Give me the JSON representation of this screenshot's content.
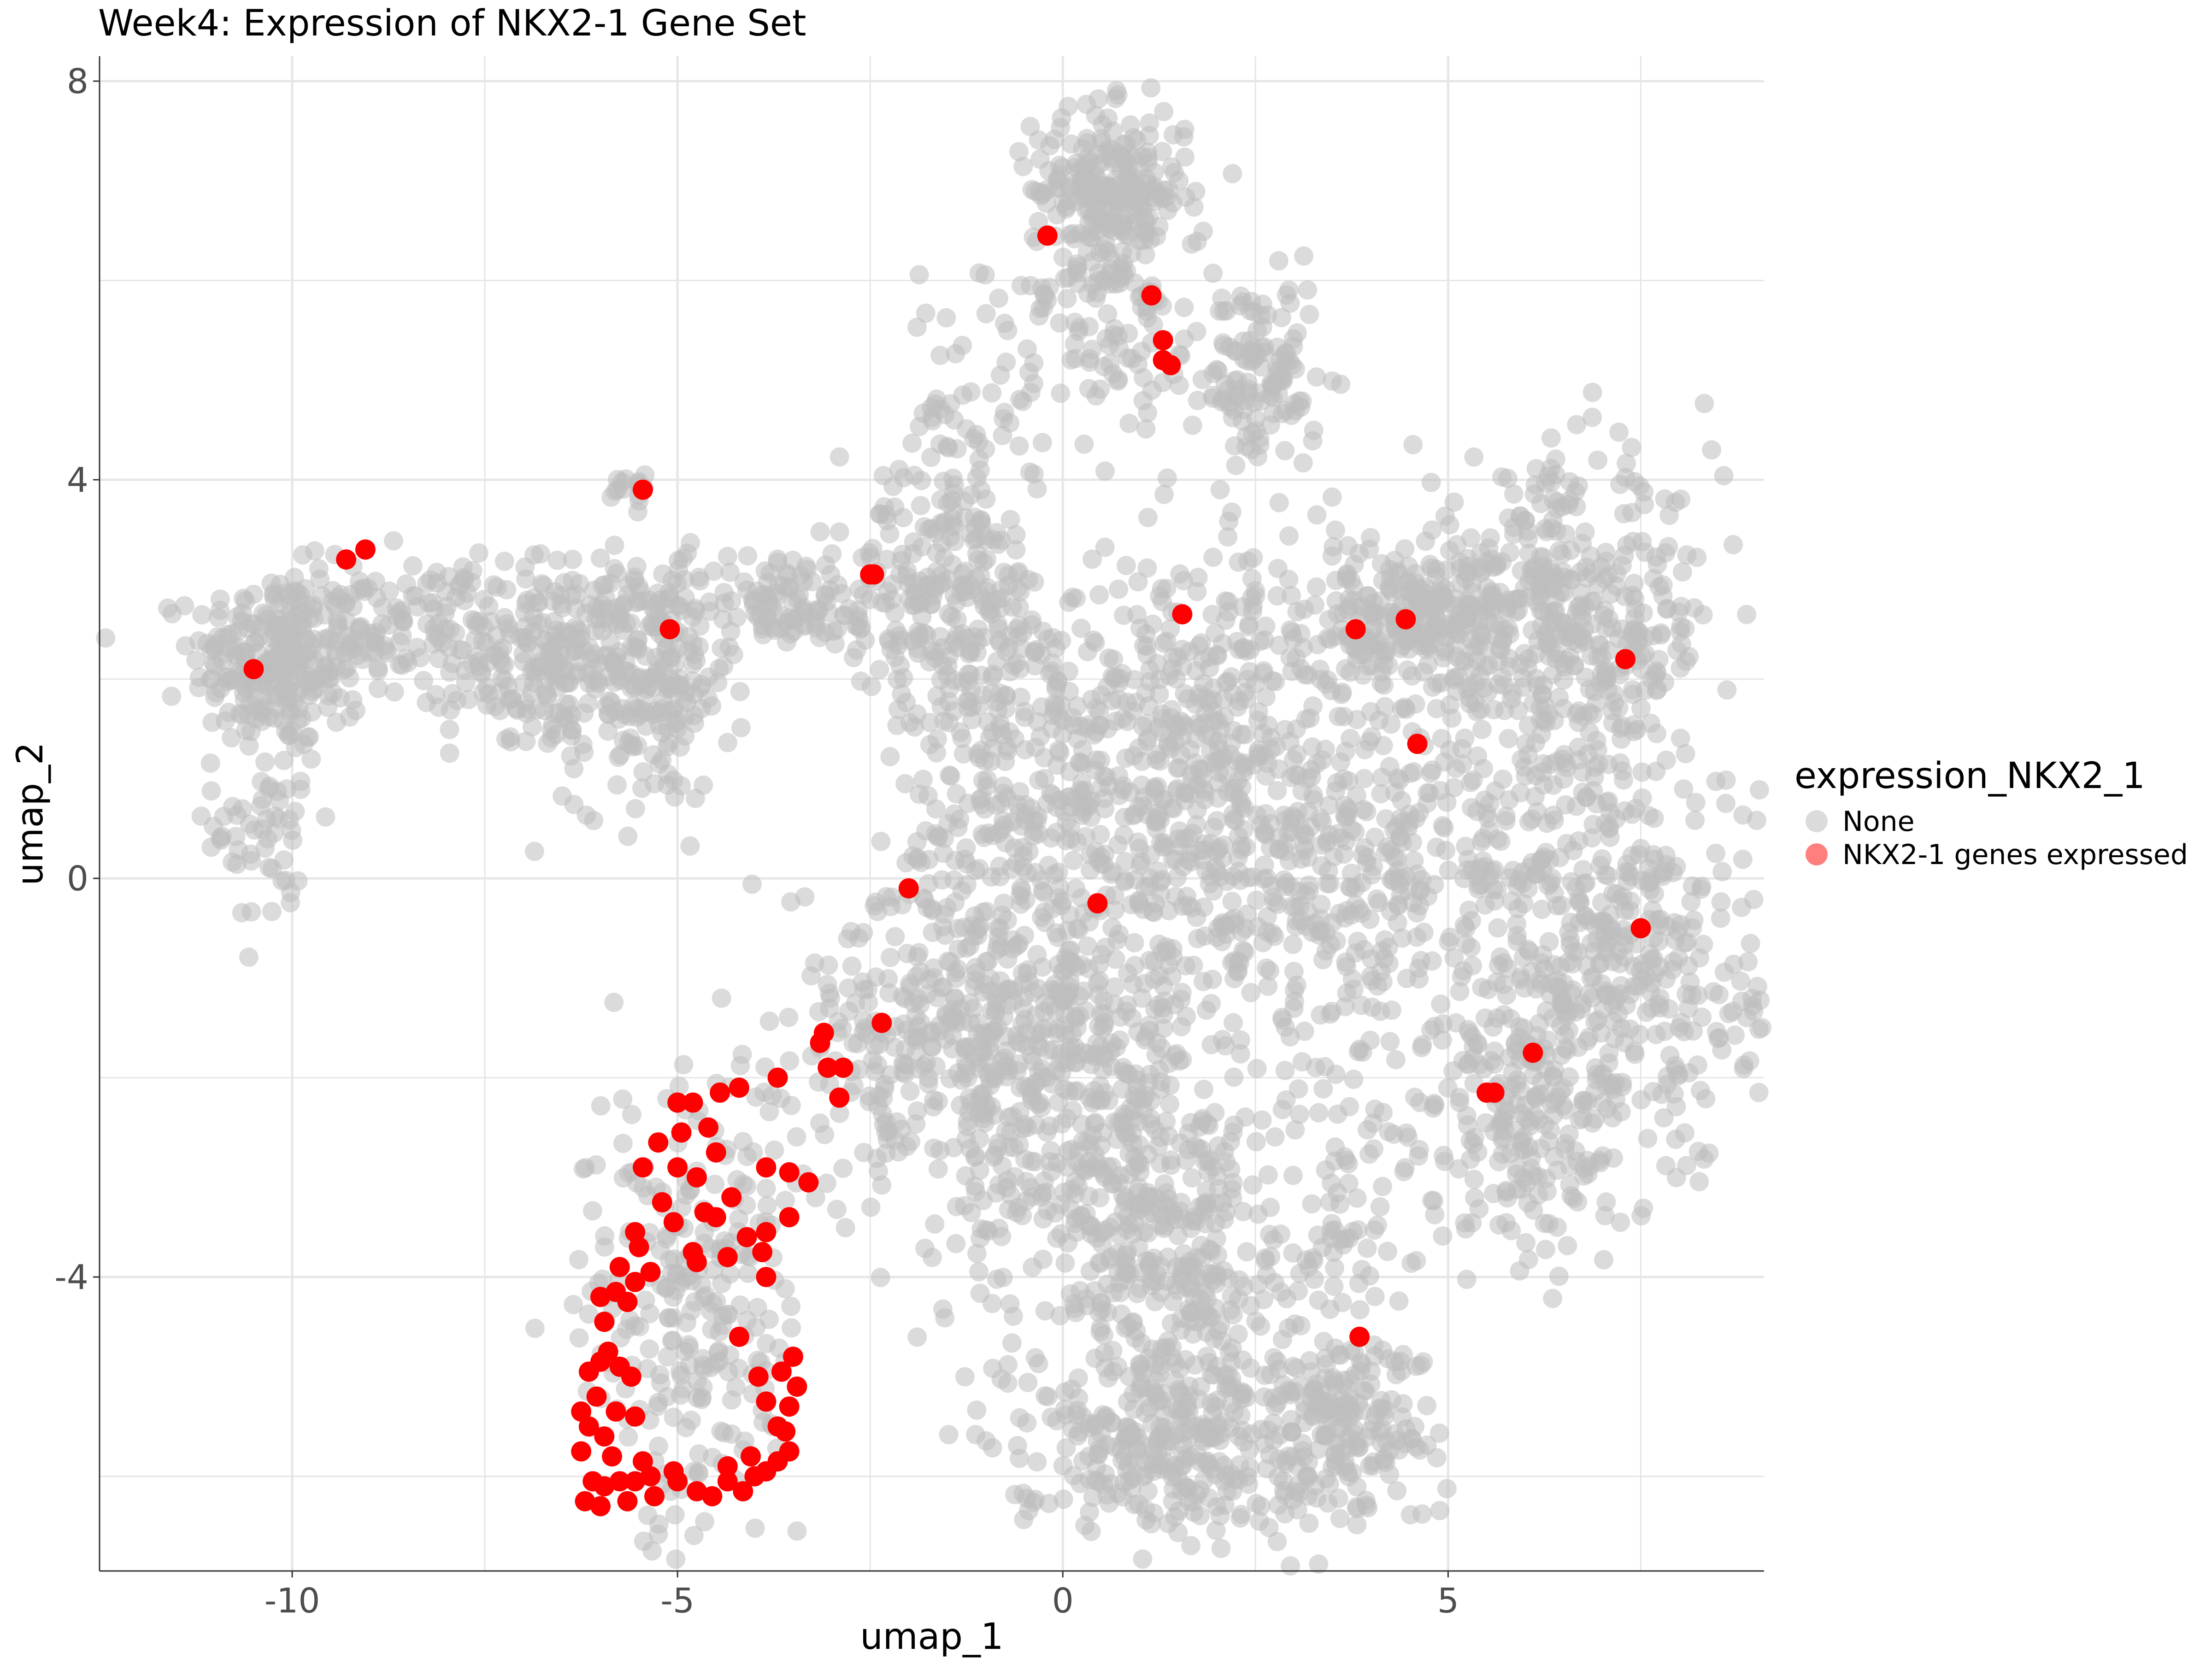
{
  "chart_data": {
    "type": "scatter",
    "title": "Week4: Expression of NKX2-1 Gene Set",
    "xlabel": "umap_1",
    "ylabel": "umap_2",
    "xlim": [
      -12.5,
      9.1
    ],
    "ylim": [
      -6.95,
      8.25
    ],
    "x_ticks": [
      -10,
      -5,
      0,
      5
    ],
    "x_tick_labels": [
      "-10",
      "-5",
      "0",
      "5"
    ],
    "y_ticks": [
      -4,
      0,
      4,
      8
    ],
    "y_tick_labels": [
      "-4",
      "0",
      "4",
      "8"
    ],
    "grid": true,
    "legend": {
      "title": "expression_NKX2_1",
      "position": "right",
      "entries": [
        {
          "label": "None",
          "color": "#bebebe"
        },
        {
          "label": "NKX2-1 genes expressed",
          "color": "#ff0000"
        }
      ]
    },
    "series": [
      {
        "name": "None",
        "color": "#bebebe",
        "note_regions": [
          {
            "cx": -10.2,
            "cy": 2.2,
            "sx": 0.55,
            "sy": 0.45,
            "n": 260
          },
          {
            "cx": -10.3,
            "cy": 0.6,
            "sx": 0.35,
            "sy": 0.6,
            "n": 60
          },
          {
            "cx": -8.6,
            "cy": 2.5,
            "sx": 0.7,
            "sy": 0.35,
            "n": 120
          },
          {
            "cx": -6.5,
            "cy": 2.2,
            "sx": 0.7,
            "sy": 0.5,
            "n": 260
          },
          {
            "cx": -5.3,
            "cy": 1.9,
            "sx": 0.5,
            "sy": 0.6,
            "n": 150
          },
          {
            "cx": -3.7,
            "cy": 2.8,
            "sx": 0.8,
            "sy": 0.25,
            "n": 120
          },
          {
            "cx": -1.5,
            "cy": 2.8,
            "sx": 0.7,
            "sy": 0.6,
            "n": 200
          },
          {
            "cx": 0.6,
            "cy": 6.9,
            "sx": 0.5,
            "sy": 0.4,
            "n": 240
          },
          {
            "cx": 0.7,
            "cy": 5.6,
            "sx": 0.7,
            "sy": 0.7,
            "n": 120
          },
          {
            "cx": 2.6,
            "cy": 5.0,
            "sx": 0.35,
            "sy": 0.5,
            "n": 120
          },
          {
            "cx": -1.4,
            "cy": 4.4,
            "sx": 0.5,
            "sy": 0.7,
            "n": 70
          },
          {
            "cx": -0.5,
            "cy": 1.2,
            "sx": 0.8,
            "sy": 1.0,
            "n": 250
          },
          {
            "cx": 1.8,
            "cy": 1.0,
            "sx": 1.1,
            "sy": 1.2,
            "n": 480
          },
          {
            "cx": 4.5,
            "cy": 2.6,
            "sx": 1.0,
            "sy": 0.35,
            "n": 260
          },
          {
            "cx": 6.5,
            "cy": 2.5,
            "sx": 1.0,
            "sy": 0.8,
            "n": 420
          },
          {
            "cx": 4.0,
            "cy": 0.0,
            "sx": 1.2,
            "sy": 1.0,
            "n": 350
          },
          {
            "cx": 7.2,
            "cy": -0.9,
            "sx": 0.9,
            "sy": 1.1,
            "n": 420
          },
          {
            "cx": 6.0,
            "cy": -2.5,
            "sx": 0.6,
            "sy": 0.6,
            "n": 160
          },
          {
            "cx": -1.5,
            "cy": -1.5,
            "sx": 1.0,
            "sy": 0.9,
            "n": 350
          },
          {
            "cx": 0.3,
            "cy": -2.2,
            "sx": 0.9,
            "sy": 1.2,
            "n": 420
          },
          {
            "cx": 1.5,
            "cy": -3.8,
            "sx": 0.8,
            "sy": 0.9,
            "n": 250
          },
          {
            "cx": 1.3,
            "cy": -5.6,
            "sx": 1.0,
            "sy": 0.5,
            "n": 320
          },
          {
            "cx": 3.6,
            "cy": -5.5,
            "sx": 0.6,
            "sy": 0.5,
            "n": 180
          },
          {
            "cx": 3.7,
            "cy": -3.5,
            "sx": 0.6,
            "sy": 0.8,
            "n": 80
          },
          {
            "cx": -4.8,
            "cy": -4.3,
            "sx": 0.7,
            "sy": 1.2,
            "n": 260
          },
          {
            "cx": -5.6,
            "cy": 3.9,
            "sx": 0.15,
            "sy": 0.1,
            "n": 15
          }
        ]
      },
      {
        "name": "NKX2-1 genes expressed",
        "color": "#ff0000",
        "points": [
          [
            -10.5,
            2.1
          ],
          [
            -9.3,
            3.2
          ],
          [
            -9.05,
            3.3
          ],
          [
            -5.45,
            3.9
          ],
          [
            -5.1,
            2.5
          ],
          [
            -2.45,
            3.05
          ],
          [
            -2.5,
            3.05
          ],
          [
            1.55,
            2.65
          ],
          [
            3.8,
            2.5
          ],
          [
            4.45,
            2.6
          ],
          [
            7.3,
            2.2
          ],
          [
            4.6,
            1.35
          ],
          [
            -0.2,
            6.45
          ],
          [
            1.15,
            5.85
          ],
          [
            1.3,
            5.4
          ],
          [
            1.3,
            5.2
          ],
          [
            1.4,
            5.15
          ],
          [
            -2.0,
            -0.1
          ],
          [
            0.45,
            -0.25
          ],
          [
            7.5,
            -0.5
          ],
          [
            6.1,
            -1.75
          ],
          [
            5.5,
            -2.15
          ],
          [
            5.6,
            -2.15
          ],
          [
            3.85,
            -4.6
          ],
          [
            -2.35,
            -1.45
          ],
          [
            -3.1,
            -1.55
          ],
          [
            -3.15,
            -1.65
          ],
          [
            -3.05,
            -1.9
          ],
          [
            -2.85,
            -1.9
          ],
          [
            -2.9,
            -2.2
          ],
          [
            -3.7,
            -2.0
          ],
          [
            -3.85,
            -4.0
          ],
          [
            -4.2,
            -2.1
          ],
          [
            -4.45,
            -2.15
          ],
          [
            -4.8,
            -2.25
          ],
          [
            -5.0,
            -2.25
          ],
          [
            -4.6,
            -2.5
          ],
          [
            -4.95,
            -2.55
          ],
          [
            -5.25,
            -2.65
          ],
          [
            -4.5,
            -2.75
          ],
          [
            -5.0,
            -2.9
          ],
          [
            -5.45,
            -2.9
          ],
          [
            -4.75,
            -3.0
          ],
          [
            -3.85,
            -2.9
          ],
          [
            -3.55,
            -2.95
          ],
          [
            -3.3,
            -3.05
          ],
          [
            -4.3,
            -3.2
          ],
          [
            -5.2,
            -3.25
          ],
          [
            -4.65,
            -3.35
          ],
          [
            -3.55,
            -3.4
          ],
          [
            -3.85,
            -3.55
          ],
          [
            -4.1,
            -3.6
          ],
          [
            -4.5,
            -3.4
          ],
          [
            -5.05,
            -3.45
          ],
          [
            -5.55,
            -3.55
          ],
          [
            -4.8,
            -3.75
          ],
          [
            -4.35,
            -3.8
          ],
          [
            -3.9,
            -3.75
          ],
          [
            -4.75,
            -3.85
          ],
          [
            -5.5,
            -3.7
          ],
          [
            -5.75,
            -3.9
          ],
          [
            -5.35,
            -3.95
          ],
          [
            -5.55,
            -4.05
          ],
          [
            -5.8,
            -4.15
          ],
          [
            -5.65,
            -4.25
          ],
          [
            -6.0,
            -4.2
          ],
          [
            -5.95,
            -4.45
          ],
          [
            -5.9,
            -4.75
          ],
          [
            -6.0,
            -4.85
          ],
          [
            -6.15,
            -4.95
          ],
          [
            -5.75,
            -4.9
          ],
          [
            -5.6,
            -5.0
          ],
          [
            -6.05,
            -5.2
          ],
          [
            -6.25,
            -5.35
          ],
          [
            -5.8,
            -5.35
          ],
          [
            -5.55,
            -5.4
          ],
          [
            -5.95,
            -5.6
          ],
          [
            -6.15,
            -5.5
          ],
          [
            -6.25,
            -5.75
          ],
          [
            -5.85,
            -5.8
          ],
          [
            -5.45,
            -5.85
          ],
          [
            -6.1,
            -6.05
          ],
          [
            -5.95,
            -6.1
          ],
          [
            -5.75,
            -6.05
          ],
          [
            -5.55,
            -6.05
          ],
          [
            -5.35,
            -6.0
          ],
          [
            -5.05,
            -5.95
          ],
          [
            -6.2,
            -6.25
          ],
          [
            -6.0,
            -6.3
          ],
          [
            -5.65,
            -6.25
          ],
          [
            -5.3,
            -6.2
          ],
          [
            -5.0,
            -6.05
          ],
          [
            -4.75,
            -6.15
          ],
          [
            -4.55,
            -6.2
          ],
          [
            -4.35,
            -6.05
          ],
          [
            -4.15,
            -6.15
          ],
          [
            -4.0,
            -6.0
          ],
          [
            -3.85,
            -5.95
          ],
          [
            -3.7,
            -5.85
          ],
          [
            -3.55,
            -5.75
          ],
          [
            -3.7,
            -5.5
          ],
          [
            -3.55,
            -5.3
          ],
          [
            -3.45,
            -5.1
          ],
          [
            -3.65,
            -4.95
          ],
          [
            -3.5,
            -4.8
          ],
          [
            -3.85,
            -5.25
          ],
          [
            -4.35,
            -5.9
          ],
          [
            -4.05,
            -5.8
          ],
          [
            -4.2,
            -4.6
          ],
          [
            -3.95,
            -5.0
          ],
          [
            -3.6,
            -5.55
          ]
        ]
      }
    ]
  }
}
